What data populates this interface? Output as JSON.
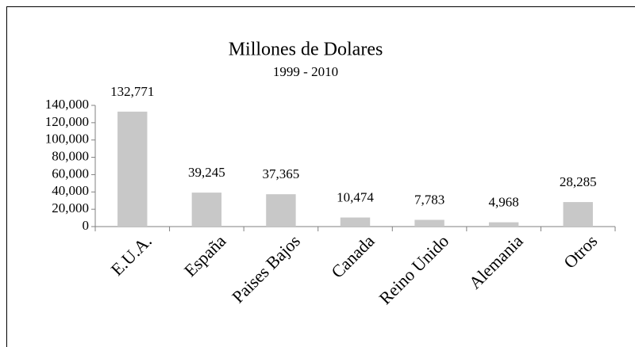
{
  "chart_data": {
    "type": "bar",
    "title": "Millones de Dolares",
    "subtitle": "1999 - 2010",
    "categories": [
      "E.U.A.",
      "España",
      "Paises Bajos",
      "Canada",
      "Reino Unido",
      "Alemania",
      "Otros"
    ],
    "values": [
      132771,
      39245,
      37365,
      10474,
      7783,
      4968,
      28285
    ],
    "value_labels": [
      "132,771",
      "39,245",
      "37,365",
      "10,474",
      "7,783",
      "4,968",
      "28,285"
    ],
    "color": "#c8c8c8",
    "ylim": [
      0,
      140000
    ],
    "yticks": [
      0,
      {
        "value": 20000,
        "label": "20,000"
      },
      {
        "value": 40000,
        "label": "40,000"
      },
      {
        "value": 60000,
        "label": "60,000"
      },
      {
        "value": 80000,
        "label": "80,000"
      },
      {
        "value": 100000,
        "label": "100,000"
      },
      {
        "value": 120000,
        "label": "120,000"
      },
      {
        "value": 140000,
        "label": "140,000"
      }
    ],
    "grid": false
  }
}
